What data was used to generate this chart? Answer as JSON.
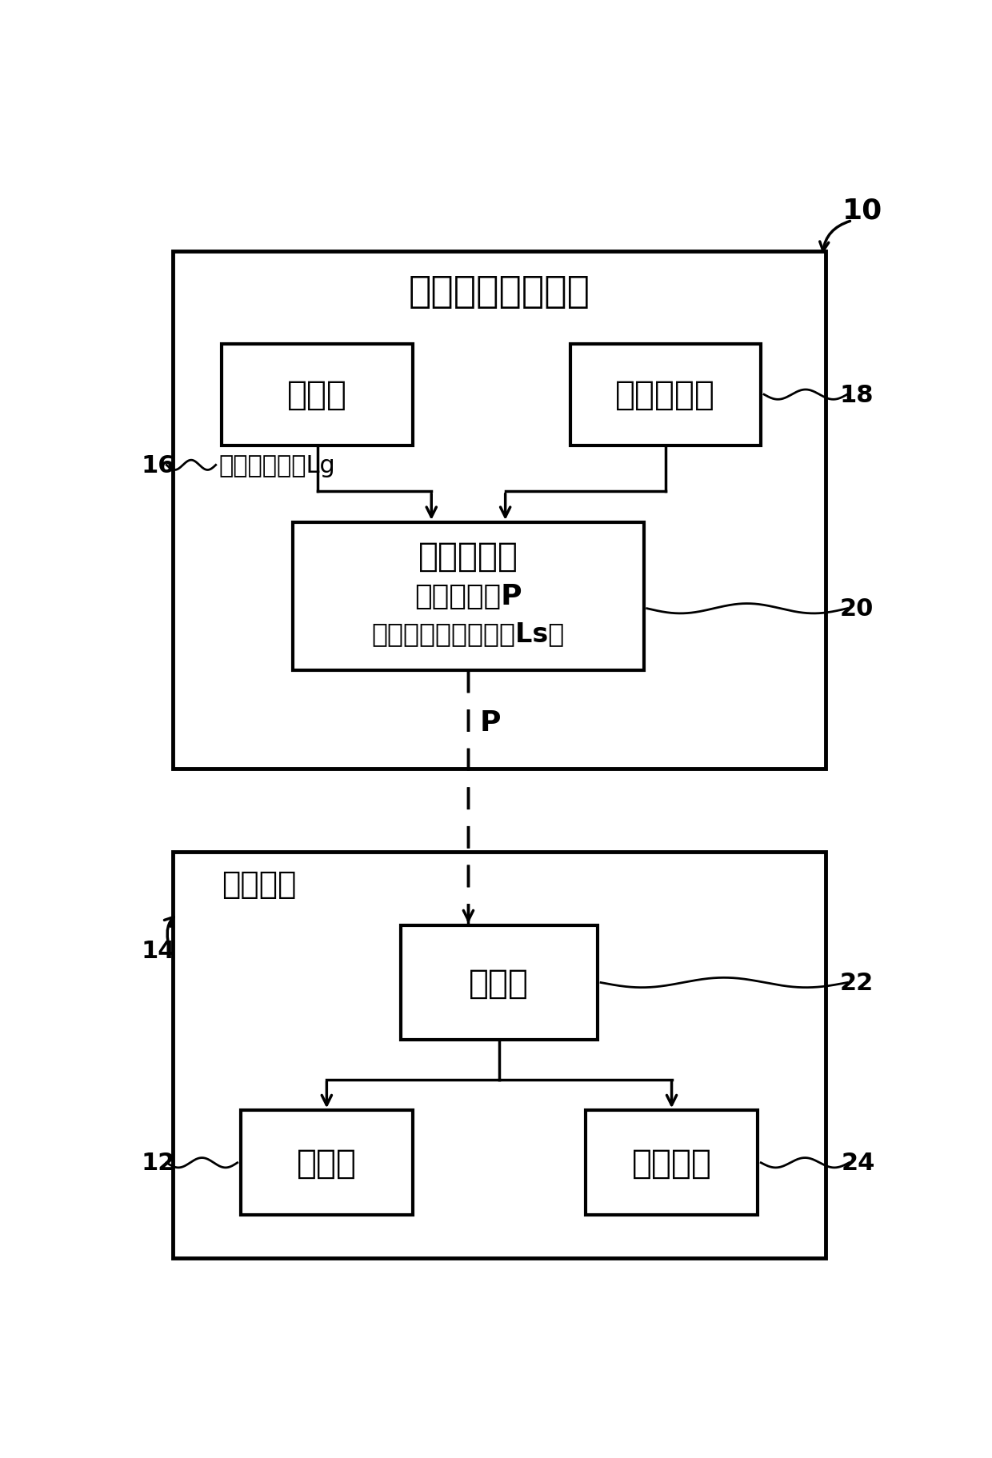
{
  "bg_color": "#ffffff",
  "line_color": "#000000",
  "title_top": "时序控制编程装置",
  "label_10": "10",
  "label_14": "14",
  "label_16": "16",
  "label_18": "18",
  "label_20": "20",
  "label_22": "22",
  "label_12": "12",
  "label_24": "24",
  "box_storage_label": "存储部",
  "box_storage_sub": "既定梯形图：Lg",
  "box_select_label": "选择输入部",
  "box_program_label1": "程序生成部",
  "box_program_label2": "控制程序：P",
  "box_program_label3": "（系统对应梯形图：Ls）",
  "box_work_system_label": "作业系统",
  "box_controller_label": "控制器",
  "box_robot_label": "机器人",
  "box_device_label": "作业设备",
  "label_P": "P"
}
